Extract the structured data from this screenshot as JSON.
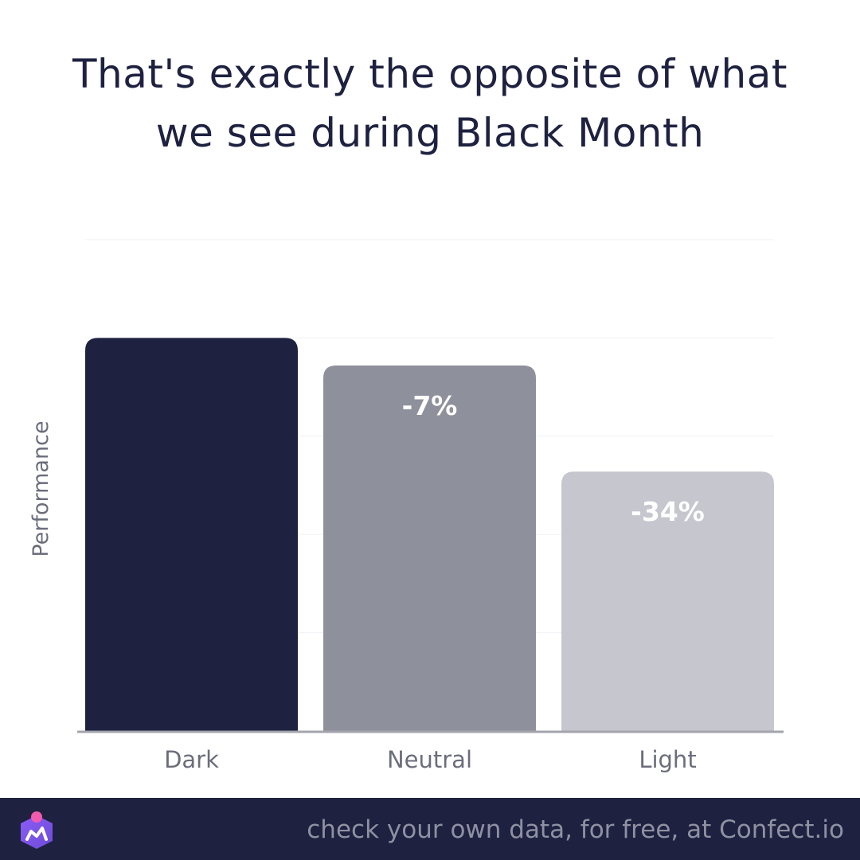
{
  "title_lines": [
    "That's exactly the opposite of what",
    "we see during Black Month"
  ],
  "chart_data": {
    "type": "bar",
    "title": "That's exactly the opposite of what we see during Black Month",
    "ylabel": "Performance",
    "xlabel": "",
    "categories": [
      "Dark",
      "Neutral",
      "Light"
    ],
    "values": [
      100,
      93,
      66
    ],
    "data_labels": [
      "",
      "-7%",
      "-34%"
    ],
    "ylim": [
      0,
      125
    ],
    "grid": true,
    "colors": [
      "#1e2140",
      "#8e909c",
      "#c6c7ce"
    ]
  },
  "footer": {
    "text": "check your own data, for free, at Confect.io",
    "logo_icon": "confect-logo-icon",
    "background": "#1e2140"
  }
}
